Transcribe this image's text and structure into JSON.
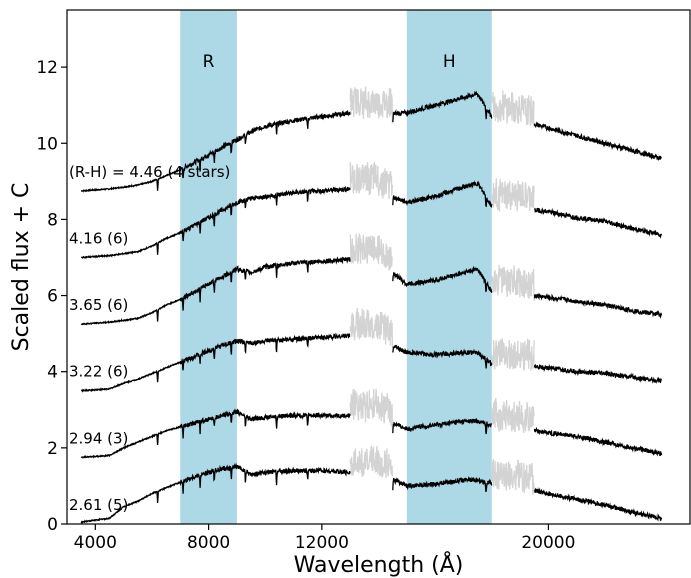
{
  "chart_data": {
    "type": "line",
    "xlabel": "Wavelength (Å)",
    "ylabel": "Scaled flux + C",
    "xlim": [
      3000,
      25000
    ],
    "ylim": [
      0,
      13.5
    ],
    "xticks": [
      {
        "value": 4000,
        "label": "4000"
      },
      {
        "value": 8000,
        "label": "8000"
      },
      {
        "value": 12000,
        "label": "12000"
      },
      {
        "value": 20000,
        "label": "20000"
      }
    ],
    "yticks": [
      {
        "value": 0,
        "label": "0"
      },
      {
        "value": 2,
        "label": "2"
      },
      {
        "value": 4,
        "label": "4"
      },
      {
        "value": 6,
        "label": "6"
      },
      {
        "value": 8,
        "label": "8"
      },
      {
        "value": 10,
        "label": "10"
      },
      {
        "value": 12,
        "label": "12"
      }
    ],
    "bands": [
      {
        "label": "R",
        "x_start": 7000,
        "x_end": 9000,
        "color": "#add8e6"
      },
      {
        "label": "H",
        "x_start": 15000,
        "x_end": 18000,
        "color": "#add8e6"
      }
    ],
    "telluric_gaps": [
      {
        "x_start": 13000,
        "x_end": 14500
      },
      {
        "x_start": 18000,
        "x_end": 19500
      }
    ],
    "line_color": "#000000",
    "gap_color": "#d3d3d3",
    "series": [
      {
        "label": "(R-H) = 4.46 (4 stars)",
        "offset": 8.75,
        "points": [
          [
            3500,
            8.75
          ],
          [
            4500,
            8.8
          ],
          [
            5500,
            8.9
          ],
          [
            6000,
            9.0
          ],
          [
            6500,
            9.15
          ],
          [
            7000,
            9.3
          ],
          [
            7500,
            9.5
          ],
          [
            8000,
            9.7
          ],
          [
            8500,
            9.9
          ],
          [
            9000,
            10.1
          ],
          [
            9500,
            10.3
          ],
          [
            10000,
            10.45
          ],
          [
            11000,
            10.6
          ],
          [
            12000,
            10.7
          ],
          [
            13000,
            10.8
          ],
          [
            14000,
            10.75
          ],
          [
            15000,
            10.8
          ],
          [
            16000,
            11.0
          ],
          [
            17000,
            11.2
          ],
          [
            17500,
            11.3
          ],
          [
            18000,
            10.7
          ],
          [
            19000,
            10.6
          ],
          [
            20000,
            10.4
          ],
          [
            21000,
            10.2
          ],
          [
            22000,
            10.0
          ],
          [
            23000,
            9.8
          ],
          [
            24000,
            9.6
          ]
        ]
      },
      {
        "label": "4.16 (6)",
        "offset": 7.0,
        "points": [
          [
            3500,
            7.0
          ],
          [
            4500,
            7.05
          ],
          [
            5500,
            7.15
          ],
          [
            6000,
            7.3
          ],
          [
            6500,
            7.5
          ],
          [
            7000,
            7.65
          ],
          [
            7500,
            7.85
          ],
          [
            8000,
            8.05
          ],
          [
            8500,
            8.25
          ],
          [
            9000,
            8.45
          ],
          [
            9500,
            8.55
          ],
          [
            10000,
            8.6
          ],
          [
            11000,
            8.7
          ],
          [
            12000,
            8.75
          ],
          [
            13000,
            8.8
          ],
          [
            14000,
            8.75
          ],
          [
            15000,
            8.45
          ],
          [
            16000,
            8.6
          ],
          [
            17000,
            8.85
          ],
          [
            17500,
            8.95
          ],
          [
            18000,
            8.35
          ],
          [
            19000,
            8.3
          ],
          [
            20000,
            8.2
          ],
          [
            21000,
            8.05
          ],
          [
            22000,
            7.95
          ],
          [
            23000,
            7.75
          ],
          [
            24000,
            7.6
          ]
        ]
      },
      {
        "label": "3.65 (6)",
        "offset": 5.25,
        "points": [
          [
            3500,
            5.25
          ],
          [
            4500,
            5.3
          ],
          [
            5500,
            5.4
          ],
          [
            6000,
            5.55
          ],
          [
            6500,
            5.75
          ],
          [
            7000,
            5.9
          ],
          [
            7500,
            6.1
          ],
          [
            8000,
            6.3
          ],
          [
            8500,
            6.5
          ],
          [
            9000,
            6.7
          ],
          [
            9500,
            6.6
          ],
          [
            10000,
            6.75
          ],
          [
            11000,
            6.85
          ],
          [
            12000,
            6.9
          ],
          [
            13000,
            6.95
          ],
          [
            14000,
            6.9
          ],
          [
            15000,
            6.3
          ],
          [
            16000,
            6.4
          ],
          [
            17000,
            6.6
          ],
          [
            17500,
            6.7
          ],
          [
            18000,
            6.1
          ],
          [
            19000,
            6.05
          ],
          [
            20000,
            5.95
          ],
          [
            21000,
            5.85
          ],
          [
            22000,
            5.75
          ],
          [
            23000,
            5.6
          ],
          [
            24000,
            5.5
          ]
        ]
      },
      {
        "label": "3.22 (6)",
        "offset": 3.5,
        "points": [
          [
            3500,
            3.5
          ],
          [
            4500,
            3.55
          ],
          [
            5000,
            3.7
          ],
          [
            5500,
            3.8
          ],
          [
            6000,
            3.95
          ],
          [
            6500,
            4.1
          ],
          [
            7000,
            4.25
          ],
          [
            7500,
            4.4
          ],
          [
            8000,
            4.55
          ],
          [
            8500,
            4.7
          ],
          [
            9000,
            4.8
          ],
          [
            9500,
            4.75
          ],
          [
            10000,
            4.8
          ],
          [
            11000,
            4.85
          ],
          [
            12000,
            4.9
          ],
          [
            13000,
            4.95
          ],
          [
            14000,
            4.9
          ],
          [
            15000,
            4.5
          ],
          [
            16000,
            4.45
          ],
          [
            17000,
            4.5
          ],
          [
            17500,
            4.5
          ],
          [
            18000,
            4.2
          ],
          [
            19000,
            4.15
          ],
          [
            20000,
            4.1
          ],
          [
            21000,
            4.0
          ],
          [
            22000,
            3.95
          ],
          [
            23000,
            3.85
          ],
          [
            24000,
            3.75
          ]
        ]
      },
      {
        "label": "2.94 (3)",
        "offset": 1.75,
        "points": [
          [
            3500,
            1.75
          ],
          [
            4500,
            1.8
          ],
          [
            5000,
            2.0
          ],
          [
            5500,
            2.15
          ],
          [
            6000,
            2.3
          ],
          [
            6500,
            2.45
          ],
          [
            7000,
            2.55
          ],
          [
            7500,
            2.65
          ],
          [
            8000,
            2.75
          ],
          [
            8500,
            2.85
          ],
          [
            9000,
            2.95
          ],
          [
            9500,
            2.75
          ],
          [
            10000,
            2.8
          ],
          [
            11000,
            2.85
          ],
          [
            12000,
            2.85
          ],
          [
            13000,
            2.85
          ],
          [
            14000,
            2.8
          ],
          [
            15000,
            2.5
          ],
          [
            16000,
            2.6
          ],
          [
            17000,
            2.7
          ],
          [
            17500,
            2.7
          ],
          [
            18000,
            2.6
          ],
          [
            19000,
            2.5
          ],
          [
            20000,
            2.4
          ],
          [
            21000,
            2.3
          ],
          [
            22000,
            2.15
          ],
          [
            23000,
            2.0
          ],
          [
            24000,
            1.85
          ]
        ]
      },
      {
        "label": "2.61 (5)",
        "offset": 0.0,
        "points": [
          [
            3500,
            0.05
          ],
          [
            4500,
            0.15
          ],
          [
            5000,
            0.45
          ],
          [
            5500,
            0.6
          ],
          [
            6000,
            0.8
          ],
          [
            6500,
            0.95
          ],
          [
            7000,
            1.1
          ],
          [
            7500,
            1.25
          ],
          [
            8000,
            1.35
          ],
          [
            8500,
            1.45
          ],
          [
            9000,
            1.5
          ],
          [
            9500,
            1.3
          ],
          [
            10000,
            1.35
          ],
          [
            11000,
            1.4
          ],
          [
            12000,
            1.4
          ],
          [
            13000,
            1.35
          ],
          [
            14000,
            1.35
          ],
          [
            15000,
            1.0
          ],
          [
            16000,
            1.05
          ],
          [
            17000,
            1.15
          ],
          [
            17500,
            1.15
          ],
          [
            18000,
            1.05
          ],
          [
            19000,
            0.95
          ],
          [
            20000,
            0.8
          ],
          [
            21000,
            0.65
          ],
          [
            22000,
            0.5
          ],
          [
            23000,
            0.3
          ],
          [
            24000,
            0.15
          ]
        ]
      }
    ]
  }
}
